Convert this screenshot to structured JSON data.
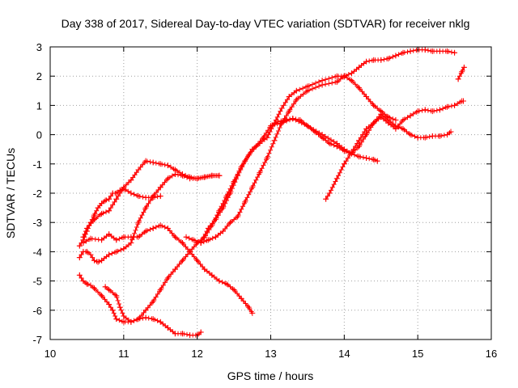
{
  "chart_data": {
    "type": "scatter",
    "title": "Day 338 of 2017, Sidereal Day-to-day VTEC variation (SDTVAR) for receiver nklg",
    "xlabel": "GPS time / hours",
    "ylabel": "SDTVAR / TECUs",
    "xlim": [
      10,
      16
    ],
    "ylim": [
      -7,
      3
    ],
    "xticks": [
      10,
      11,
      12,
      13,
      14,
      15,
      16
    ],
    "yticks": [
      -7,
      -6,
      -5,
      -4,
      -3,
      -2,
      -1,
      0,
      1,
      2,
      3
    ],
    "grid": true,
    "legend": "none",
    "marker": "+",
    "color": "#ff0000",
    "series": [
      {
        "x": [
          10.45,
          10.55,
          10.7,
          10.8,
          10.9,
          11.0,
          11.1,
          11.2,
          11.3,
          11.4,
          11.5,
          11.6,
          11.7,
          11.8,
          11.9,
          12.0,
          12.1,
          12.2,
          12.3,
          12.4,
          12.5,
          12.6,
          12.7,
          12.75
        ],
        "y": [
          -3.7,
          -3.55,
          -3.6,
          -3.4,
          -3.6,
          -3.5,
          -3.5,
          -3.5,
          -3.3,
          -3.2,
          -3.1,
          -3.2,
          -3.5,
          -3.7,
          -4.0,
          -4.3,
          -4.6,
          -4.8,
          -5.0,
          -5.1,
          -5.3,
          -5.6,
          -5.9,
          -6.1
        ]
      },
      {
        "x": [
          10.4,
          10.45,
          10.5,
          10.55,
          10.6,
          10.65,
          10.7,
          10.75,
          10.8,
          10.85,
          10.9,
          10.95,
          11.0,
          11.1,
          11.2,
          11.3,
          11.4,
          11.5
        ],
        "y": [
          -3.8,
          -3.6,
          -3.3,
          -3.0,
          -2.75,
          -2.5,
          -2.35,
          -2.25,
          -2.2,
          -2.0,
          -2.0,
          -1.9,
          -1.85,
          -2.0,
          -2.1,
          -2.15,
          -2.15,
          -2.1
        ]
      },
      {
        "x": [
          10.4,
          10.45,
          10.5,
          10.55,
          10.6,
          10.65,
          10.7,
          10.8,
          10.9,
          11.0,
          11.1,
          11.2,
          11.3,
          11.4,
          11.5,
          11.6,
          11.7,
          11.8,
          11.9,
          12.0,
          12.1,
          12.2,
          12.3
        ],
        "y": [
          -4.2,
          -4.0,
          -4.0,
          -4.1,
          -4.3,
          -4.35,
          -4.3,
          -4.1,
          -4.0,
          -3.9,
          -3.7,
          -3.0,
          -2.5,
          -2.1,
          -1.8,
          -1.5,
          -1.35,
          -1.4,
          -1.5,
          -1.5,
          -1.45,
          -1.4,
          -1.4
        ]
      },
      {
        "x": [
          10.45,
          10.5,
          10.6,
          10.7,
          10.8,
          10.9,
          11.0,
          11.1,
          11.2,
          11.3,
          11.4,
          11.5,
          11.6,
          11.7,
          11.8,
          11.9,
          12.0,
          12.1,
          12.2,
          12.3
        ],
        "y": [
          -3.5,
          -3.2,
          -2.9,
          -2.7,
          -2.6,
          -2.2,
          -1.8,
          -1.55,
          -1.2,
          -0.9,
          -0.95,
          -1.0,
          -1.05,
          -1.2,
          -1.35,
          -1.45,
          -1.5,
          -1.45,
          -1.4,
          -1.4
        ]
      },
      {
        "x": [
          10.4,
          10.45,
          10.5,
          10.55,
          10.6,
          10.7,
          10.8,
          10.85,
          10.9,
          11.0,
          11.1,
          11.2,
          11.3,
          11.4,
          11.5,
          11.6,
          11.7,
          11.8,
          11.9,
          12.0,
          12.05
        ],
        "y": [
          -4.8,
          -5.0,
          -5.1,
          -5.15,
          -5.25,
          -5.5,
          -5.8,
          -6.0,
          -6.3,
          -6.4,
          -6.4,
          -6.3,
          -6.25,
          -6.3,
          -6.4,
          -6.6,
          -6.8,
          -6.8,
          -6.85,
          -6.85,
          -6.75
        ]
      },
      {
        "x": [
          10.75,
          10.8,
          10.9,
          10.95,
          11.0,
          11.1,
          11.2,
          11.3,
          11.4,
          11.5,
          11.6,
          11.7,
          11.8,
          11.9,
          12.0,
          12.1,
          12.2,
          12.3,
          12.4,
          12.5,
          12.6,
          12.7,
          12.8,
          12.9,
          13.0,
          13.1,
          13.2,
          13.3,
          13.4,
          13.5,
          13.6,
          13.7,
          13.8,
          13.9,
          14.0,
          14.1,
          14.2,
          14.3,
          14.4,
          14.45
        ],
        "y": [
          -5.2,
          -5.3,
          -5.5,
          -5.9,
          -6.2,
          -6.4,
          -6.3,
          -6.0,
          -5.7,
          -5.3,
          -4.9,
          -4.6,
          -4.3,
          -4.0,
          -3.7,
          -3.5,
          -3.1,
          -2.6,
          -2.1,
          -1.6,
          -1.1,
          -0.7,
          -0.4,
          -0.1,
          0.3,
          0.45,
          0.5,
          0.55,
          0.5,
          0.3,
          0.1,
          -0.1,
          -0.3,
          -0.4,
          -0.55,
          -0.65,
          -0.75,
          -0.8,
          -0.85,
          -0.9
        ]
      },
      {
        "x": [
          11.85,
          11.95,
          12.05,
          12.15,
          12.25,
          12.35,
          12.45,
          12.55,
          12.65,
          12.75,
          12.85,
          12.95,
          13.05,
          13.15,
          13.25,
          13.35,
          13.5,
          13.7,
          13.9,
          14.0,
          14.1,
          14.2,
          14.3,
          14.4,
          14.5,
          14.6,
          14.7,
          14.8,
          14.9,
          15.0,
          15.1,
          15.2,
          15.3,
          15.4,
          15.5
        ],
        "y": [
          -3.5,
          -3.6,
          -3.7,
          -3.6,
          -3.5,
          -3.3,
          -3.0,
          -2.8,
          -2.3,
          -1.8,
          -1.3,
          -0.8,
          -0.2,
          0.4,
          0.8,
          1.2,
          1.5,
          1.7,
          1.8,
          2.0,
          2.1,
          2.3,
          2.5,
          2.55,
          2.55,
          2.6,
          2.7,
          2.8,
          2.85,
          2.9,
          2.9,
          2.85,
          2.85,
          2.85,
          2.8
        ]
      },
      {
        "x": [
          12.05,
          12.15,
          12.25,
          12.35,
          12.45,
          12.55,
          12.65,
          12.75,
          12.85,
          12.95,
          13.05,
          13.15,
          13.25,
          13.35,
          13.5,
          13.7,
          13.9,
          14.0,
          14.1,
          14.2,
          14.3,
          14.4,
          14.5,
          14.6,
          14.7
        ],
        "y": [
          -3.7,
          -3.2,
          -2.9,
          -2.5,
          -2.0,
          -1.4,
          -0.9,
          -0.5,
          -0.3,
          -0.1,
          0.4,
          0.9,
          1.3,
          1.5,
          1.65,
          1.85,
          2.0,
          2.0,
          1.85,
          1.6,
          1.3,
          1.0,
          0.8,
          0.6,
          0.5
        ]
      },
      {
        "x": [
          13.05,
          13.15,
          13.3,
          13.5,
          13.7,
          13.9,
          14.0,
          14.1,
          14.2,
          14.3,
          14.4,
          14.5,
          14.6,
          14.7,
          14.8,
          14.9,
          15.0,
          15.1,
          15.2,
          15.3,
          15.4,
          15.45
        ],
        "y": [
          0.35,
          0.4,
          0.55,
          0.3,
          0.0,
          -0.3,
          -0.5,
          -0.65,
          -0.4,
          0.0,
          0.4,
          0.7,
          0.5,
          0.3,
          0.2,
          0.0,
          -0.1,
          -0.1,
          -0.05,
          -0.05,
          0.0,
          0.1
        ]
      },
      {
        "x": [
          13.75,
          13.8,
          13.9,
          14.0,
          14.1,
          14.2,
          14.3,
          14.4,
          14.5,
          14.6,
          14.7,
          14.8,
          14.9,
          15.0,
          15.1,
          15.2,
          15.3,
          15.4,
          15.5,
          15.6,
          15.62
        ],
        "y": [
          -2.2,
          -2.0,
          -1.5,
          -1.0,
          -0.6,
          -0.2,
          0.2,
          0.4,
          0.6,
          0.4,
          0.2,
          0.5,
          0.65,
          0.8,
          0.85,
          0.8,
          0.85,
          0.95,
          1.0,
          1.15,
          1.15
        ]
      },
      {
        "x": [
          15.55,
          15.6,
          15.63
        ],
        "y": [
          1.9,
          2.15,
          2.3
        ]
      }
    ]
  }
}
